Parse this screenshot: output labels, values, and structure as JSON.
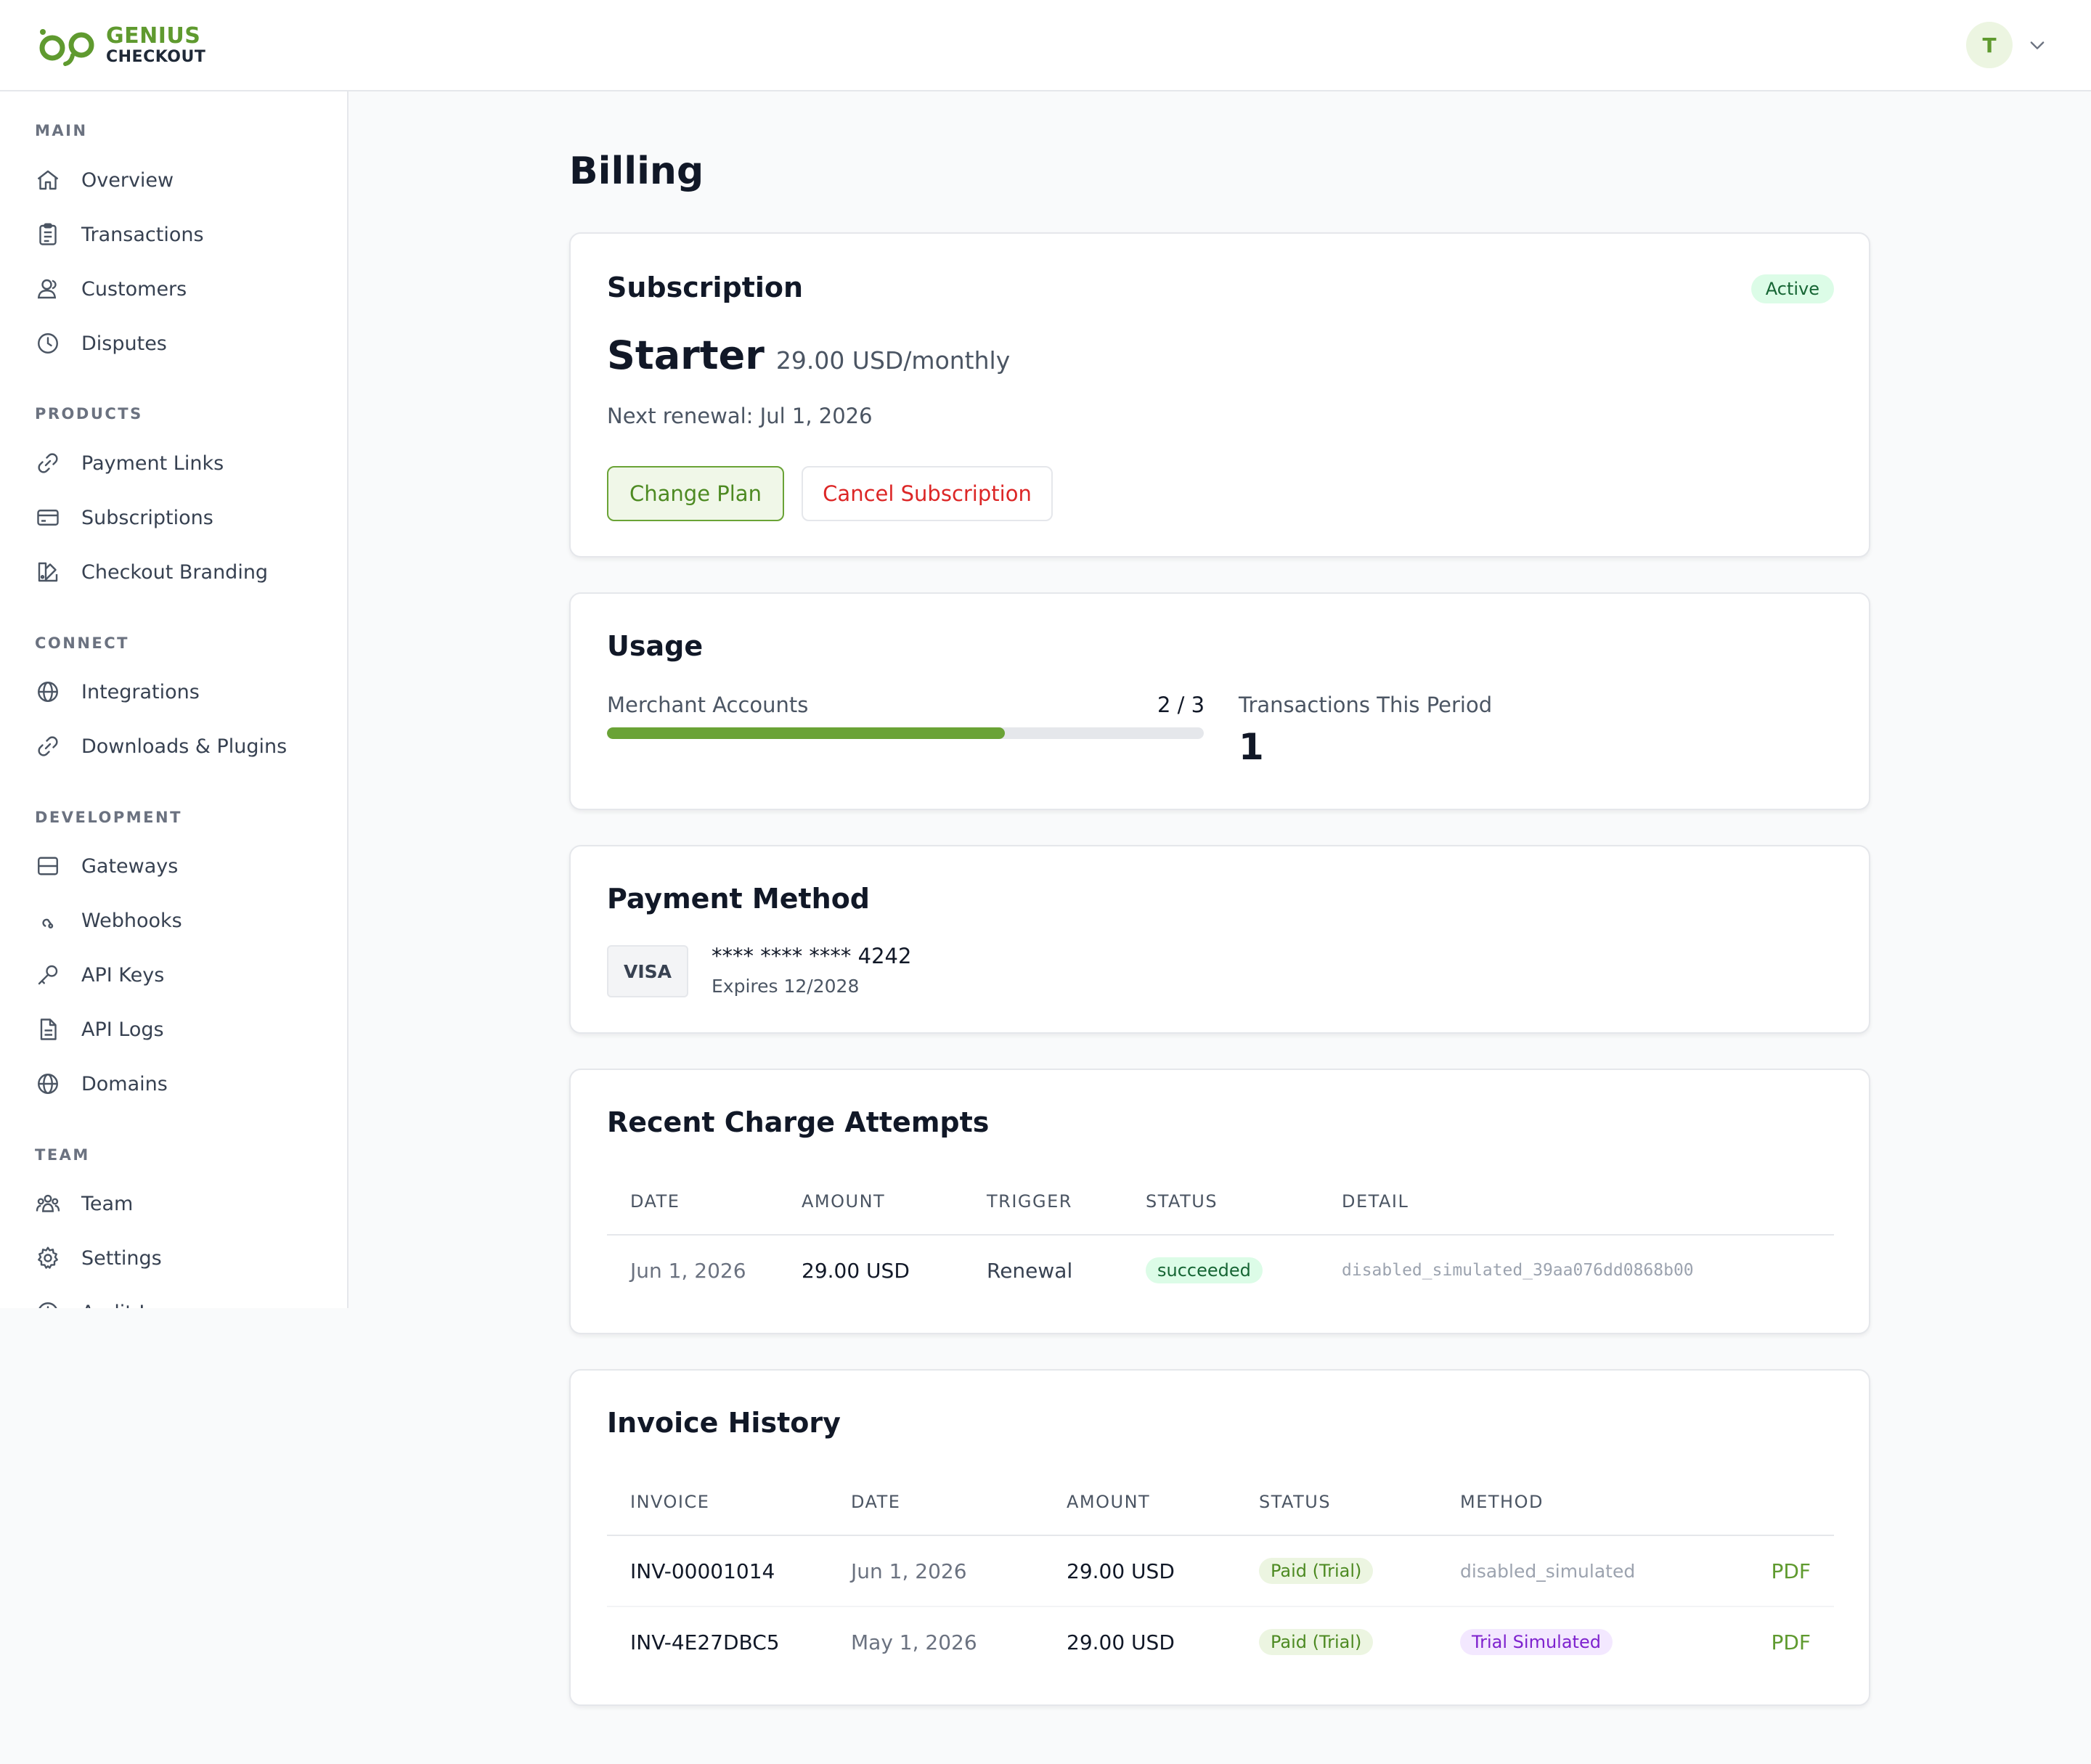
{
  "brand": {
    "line1": "GENIUS",
    "line2": "CHECKOUT"
  },
  "user": {
    "initial": "T"
  },
  "sidebar": {
    "sections": [
      {
        "title": "MAIN",
        "items": [
          "Overview",
          "Transactions",
          "Customers",
          "Disputes"
        ]
      },
      {
        "title": "PRODUCTS",
        "items": [
          "Payment Links",
          "Subscriptions",
          "Checkout Branding"
        ]
      },
      {
        "title": "CONNECT",
        "items": [
          "Integrations",
          "Downloads & Plugins"
        ]
      },
      {
        "title": "DEVELOPMENT",
        "items": [
          "Gateways",
          "Webhooks",
          "API Keys",
          "API Logs",
          "Domains"
        ]
      },
      {
        "title": "TEAM",
        "items": [
          "Team",
          "Settings",
          "Audit Log"
        ]
      }
    ]
  },
  "page": {
    "title": "Billing"
  },
  "subscription": {
    "title": "Subscription",
    "status": "Active",
    "plan": "Starter",
    "price": "29.00 USD/monthly",
    "renewal": "Next renewal: Jul 1, 2026",
    "change_label": "Change Plan",
    "cancel_label": "Cancel Subscription"
  },
  "usage": {
    "title": "Usage",
    "merchant_label": "Merchant Accounts",
    "merchant_value": "2 / 3",
    "merchant_fraction": 0.667,
    "tx_label": "Transactions This Period",
    "tx_value": "1"
  },
  "payment_method": {
    "title": "Payment Method",
    "brand": "VISA",
    "number": "**** **** **** 4242",
    "expires": "Expires 12/2028"
  },
  "charges": {
    "title": "Recent Charge Attempts",
    "headers": [
      "DATE",
      "AMOUNT",
      "TRIGGER",
      "STATUS",
      "DETAIL"
    ],
    "rows": [
      {
        "date": "Jun 1, 2026",
        "amount": "29.00 USD",
        "trigger": "Renewal",
        "status": "succeeded",
        "detail": "disabled_simulated_39aa076dd0868b00"
      }
    ]
  },
  "invoices": {
    "title": "Invoice History",
    "headers": [
      "INVOICE",
      "DATE",
      "AMOUNT",
      "STATUS",
      "METHOD"
    ],
    "rows": [
      {
        "invoice": "INV-00001014",
        "date": "Jun 1, 2026",
        "amount": "29.00 USD",
        "status": "Paid (Trial)",
        "method": "disabled_simulated",
        "link": "PDF"
      },
      {
        "invoice": "INV-4E27DBC5",
        "date": "May 1, 2026",
        "amount": "29.00 USD",
        "status": "Paid (Trial)",
        "method": "Trial Simulated",
        "link": "PDF"
      }
    ]
  },
  "colors": {
    "accent": "#6aa336",
    "danger": "#dc2626",
    "success_bg": "#dcfce7"
  }
}
